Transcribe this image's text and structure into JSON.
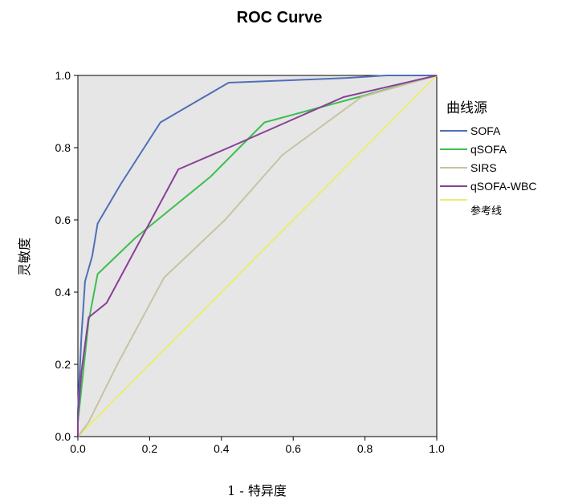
{
  "chart_data": {
    "type": "line",
    "title": "ROC Curve",
    "xlabel": "1 - 特异度",
    "ylabel": "灵敏度",
    "xlim": [
      0,
      1
    ],
    "ylim": [
      0,
      1
    ],
    "xticks": [
      "0.0",
      "0.2",
      "0.4",
      "0.6",
      "0.8",
      "1.0"
    ],
    "yticks": [
      "0.0",
      "0.2",
      "0.4",
      "0.6",
      "0.8",
      "1.0"
    ],
    "grid": false,
    "legend": {
      "title": "曲线源",
      "placement": "right"
    },
    "plot_background": "#e6e6e6",
    "series": [
      {
        "name": "SOFA",
        "color": "#4f6fb8",
        "x": [
          0.0,
          0.0,
          0.01,
          0.02,
          0.04,
          0.055,
          0.12,
          0.23,
          0.42,
          0.6,
          0.75,
          0.86,
          1.0
        ],
        "y": [
          0.0,
          0.07,
          0.28,
          0.43,
          0.5,
          0.59,
          0.7,
          0.87,
          0.98,
          0.987,
          0.993,
          1.0,
          1.0
        ]
      },
      {
        "name": "qSOFA",
        "color": "#3dbf4f",
        "x": [
          0.0,
          0.0,
          0.03,
          0.055,
          0.16,
          0.37,
          0.52,
          0.8,
          1.0
        ],
        "y": [
          0.0,
          0.04,
          0.32,
          0.45,
          0.55,
          0.72,
          0.87,
          0.945,
          1.0
        ]
      },
      {
        "name": "SIRS",
        "color": "#c8c3a2",
        "x": [
          0.0,
          0.03,
          0.11,
          0.24,
          0.41,
          0.57,
          0.79,
          1.0
        ],
        "y": [
          0.0,
          0.04,
          0.2,
          0.44,
          0.6,
          0.78,
          0.94,
          1.0
        ]
      },
      {
        "name": "qSOFA-WBC",
        "color": "#8a3f96",
        "x": [
          0.0,
          0.0,
          0.01,
          0.03,
          0.08,
          0.28,
          0.42,
          0.74,
          1.0
        ],
        "y": [
          0.0,
          0.06,
          0.18,
          0.33,
          0.37,
          0.74,
          0.8,
          0.94,
          1.0
        ]
      },
      {
        "name": "参考线",
        "color": "#ecec76",
        "x": [
          0.0,
          1.0
        ],
        "y": [
          0.0,
          1.0
        ]
      }
    ]
  }
}
